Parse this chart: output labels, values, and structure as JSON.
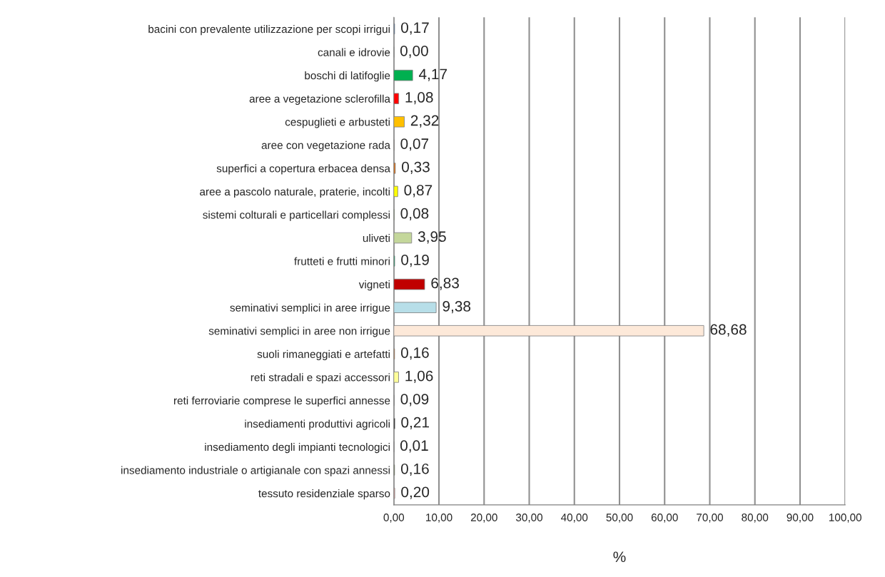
{
  "chart_data": {
    "type": "bar",
    "orientation": "horizontal",
    "xlabel": "%",
    "categories": [
      "bacini con prevalente utilizzazione per scopi irrigui",
      "canali e idrovie",
      "boschi di latifoglie",
      "aree a vegetazione sclerofilla",
      "cespuglieti e arbusteti",
      "aree con vegetazione rada",
      "superfici a copertura erbacea densa",
      "aree a pascolo naturale, praterie, incolti",
      "sistemi colturali e particellari complessi",
      "uliveti",
      "frutteti e frutti minori",
      "vigneti",
      "seminativi semplici in aree irrigue",
      "seminativi semplici in aree non irrigue",
      "suoli rimaneggiati e artefatti",
      "reti stradali e spazi accessori",
      "reti ferroviarie comprese le superfici annesse",
      "insediamenti produttivi agricoli",
      "insediamento degli impianti tecnologici",
      "insediamento industriale o artigianale con spazi annessi",
      "tessuto residenziale sparso"
    ],
    "values": [
      0.17,
      0.0,
      4.17,
      1.08,
      2.32,
      0.07,
      0.33,
      0.87,
      0.08,
      3.95,
      0.19,
      6.83,
      9.38,
      68.68,
      0.16,
      1.06,
      0.09,
      0.21,
      0.01,
      0.16,
      0.2
    ],
    "value_labels": [
      "0,17",
      "0,00",
      "4,17",
      "1,08",
      "2,32",
      "0,07",
      "0,33",
      "0,87",
      "0,08",
      "3,95",
      "0,19",
      "6,83",
      "9,38",
      "68,68",
      "0,16",
      "1,06",
      "0,09",
      "0,21",
      "0,01",
      "0,16",
      "0,20"
    ],
    "colors": [
      "#2e5fa3",
      "#1f9bd7",
      "#00b050",
      "#ff0000",
      "#ffc000",
      "#c0a080",
      "#e36c09",
      "#ffff00",
      "#92d050",
      "#c4d79b",
      "#00a060",
      "#c00000",
      "#b7dee8",
      "#fde9d9",
      "#e36c09",
      "#ffff99",
      "#a6a6a6",
      "#000000",
      "#7030a0",
      "#4f6228",
      "#d99694"
    ],
    "xlim": [
      0,
      100
    ],
    "xticks": [
      {
        "value": 0,
        "label": "0,00"
      },
      {
        "value": 10,
        "label": "10,00"
      },
      {
        "value": 20,
        "label": "20,00"
      },
      {
        "value": 30,
        "label": "30,00"
      },
      {
        "value": 40,
        "label": "40,00"
      },
      {
        "value": 50,
        "label": "50,00"
      },
      {
        "value": 60,
        "label": "60,00"
      },
      {
        "value": 70,
        "label": "70,00"
      },
      {
        "value": 80,
        "label": "80,00"
      },
      {
        "value": 90,
        "label": "90,00"
      },
      {
        "value": 100,
        "label": "100,00"
      }
    ],
    "grid": "x"
  }
}
